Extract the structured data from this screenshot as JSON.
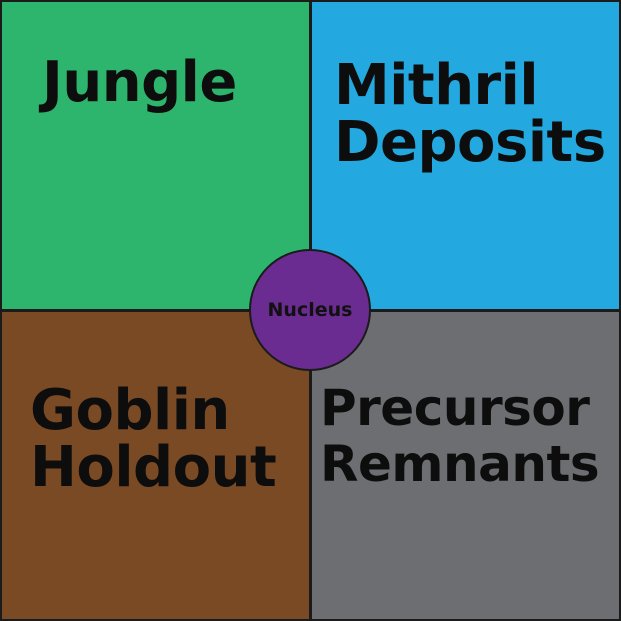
{
  "regions": [
    {
      "id": "jungle",
      "lines": [
        "Jungle"
      ],
      "color": "#2db56e"
    },
    {
      "id": "mithril",
      "lines": [
        "Mithril",
        "Deposits"
      ],
      "color": "#24a8e0"
    },
    {
      "id": "goblin",
      "lines": [
        "Goblin",
        "Holdout"
      ],
      "color": "#7a4a24"
    },
    {
      "id": "precursor",
      "lines": [
        "Precursor",
        "Remnants"
      ],
      "color": "#6d6e71"
    }
  ],
  "nucleus": {
    "label": "Nucleus",
    "color": "#6a2c91"
  }
}
